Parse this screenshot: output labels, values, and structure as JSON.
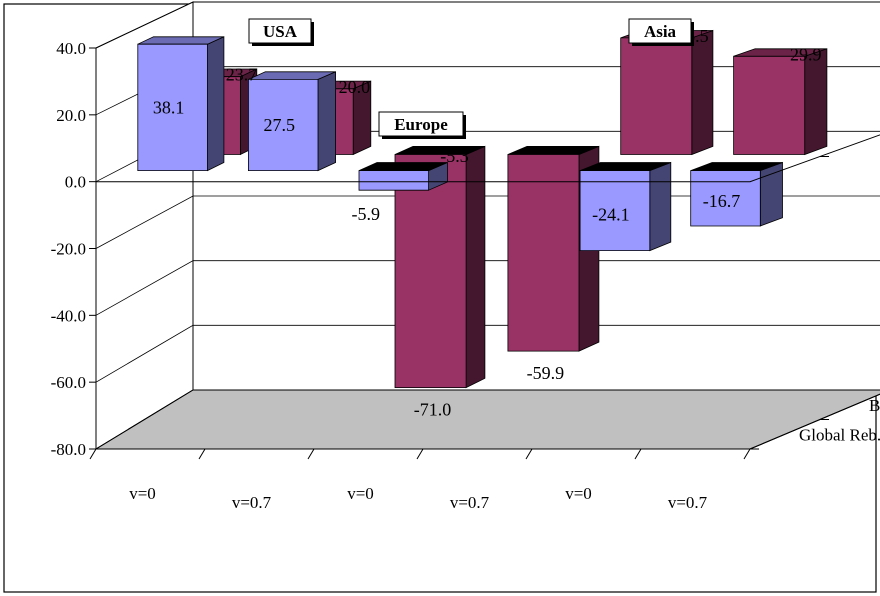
{
  "chart_data": {
    "type": "bar",
    "subtype": "3d-clustered-column",
    "title": "",
    "y_tick_labels": [
      "40.0",
      "20.0",
      "0.0",
      "-20.0",
      "-40.0",
      "-60.0",
      "-80.0"
    ],
    "ylim": [
      -80,
      40
    ],
    "grid": true,
    "categories": [
      "v=0",
      "v=0.7",
      "v=0",
      "v=0.7",
      "v=0",
      "v=0.7"
    ],
    "group_labels": [
      "USA",
      "Europe",
      "Asia"
    ],
    "depth_labels": [
      "BW II",
      "Global Reb."
    ],
    "series": [
      {
        "name": "Global Reb.",
        "color": "#9999ff",
        "values": [
          38.1,
          27.5,
          -5.9,
          null,
          -24.1,
          -16.7
        ],
        "labels": [
          "38.1",
          "27.5",
          "-5.9",
          "",
          "-24.1",
          "-16.7"
        ]
      },
      {
        "name": "BW II",
        "color": "#993366",
        "values": [
          23.7,
          20.0,
          -71.0,
          -59.9,
          35.5,
          29.9
        ],
        "labels": [
          "23.7",
          "20.0",
          "-71.0",
          "-59.9",
          "35.5",
          "29.9"
        ]
      }
    ],
    "extra_labels": [
      "-5.3"
    ],
    "colors": {
      "front_series": "#9999ff",
      "back_series": "#993366",
      "floor": "#c0c0c0",
      "cap": "#000000"
    }
  }
}
